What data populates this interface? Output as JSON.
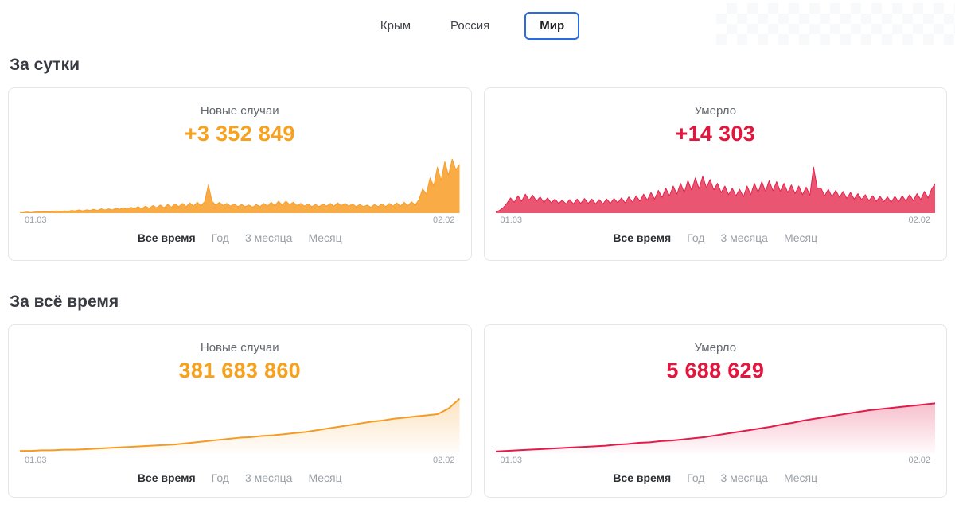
{
  "tabs": [
    {
      "label": "Крым",
      "active": false
    },
    {
      "label": "Россия",
      "active": false
    },
    {
      "label": "Мир",
      "active": true
    }
  ],
  "axis": {
    "start": "01.03",
    "end": "02.02"
  },
  "range_options": [
    "Все время",
    "Год",
    "3 месяца",
    "Месяц"
  ],
  "active_range": "Все время",
  "colors": {
    "accent_orange": "#F7A11C",
    "accent_red": "#E3173D",
    "tab_active_border": "#2B6BE0",
    "card_border": "#e3e6ea",
    "muted_text": "#9aa0a6"
  },
  "sections": [
    {
      "heading": "За сутки",
      "cards": [
        {
          "title": "Новые случаи",
          "value": "+3 352 849"
        },
        {
          "title": "Умерло",
          "value": "+14 303"
        }
      ]
    },
    {
      "heading": "За всё время",
      "cards": [
        {
          "title": "Новые случаи",
          "value": "381 683 860"
        },
        {
          "title": "Умерло",
          "value": "5 688 629"
        }
      ]
    }
  ],
  "chart_data": [
    {
      "id": "daily-new-cases",
      "type": "area",
      "title": "Новые случаи (за сутки)",
      "x_start": "01.03",
      "x_end": "02.02",
      "latest_value_label": "+3 352 849",
      "color": "#F79E2D",
      "fill": "#F9AB45",
      "fill_style": "solid",
      "values_unit": "percent_of_chart_height",
      "values": [
        1,
        1,
        2,
        1,
        2,
        2,
        3,
        2,
        3,
        3,
        4,
        3,
        4,
        3,
        5,
        4,
        6,
        4,
        6,
        5,
        7,
        5,
        8,
        6,
        8,
        6,
        9,
        7,
        10,
        7,
        11,
        8,
        12,
        8,
        13,
        9,
        14,
        10,
        15,
        10,
        16,
        11,
        17,
        12,
        18,
        12,
        19,
        13,
        20,
        14,
        21,
        52,
        22,
        15,
        20,
        14,
        18,
        13,
        17,
        12,
        16,
        12,
        15,
        11,
        16,
        12,
        18,
        13,
        20,
        14,
        22,
        15,
        22,
        16,
        20,
        14,
        18,
        13,
        17,
        12,
        16,
        12,
        17,
        13,
        18,
        13,
        19,
        14,
        18,
        13,
        17,
        12,
        16,
        12,
        15,
        11,
        16,
        12,
        17,
        12,
        18,
        13,
        19,
        13,
        20,
        14,
        21,
        15,
        25,
        45,
        35,
        65,
        50,
        85,
        60,
        95,
        70,
        100,
        80,
        90
      ]
    },
    {
      "id": "daily-deaths",
      "type": "area",
      "title": "Умерло (за сутки)",
      "x_start": "01.03",
      "x_end": "02.02",
      "latest_value_label": "+14 303",
      "color": "#E3234C",
      "fill": "#EA5572",
      "fill_style": "solid",
      "values_unit": "percent_of_chart_height",
      "values": [
        2,
        5,
        10,
        18,
        28,
        20,
        32,
        22,
        35,
        24,
        33,
        22,
        30,
        20,
        28,
        19,
        26,
        18,
        24,
        17,
        25,
        17,
        26,
        18,
        27,
        18,
        26,
        17,
        25,
        17,
        26,
        18,
        27,
        19,
        28,
        19,
        30,
        20,
        32,
        22,
        35,
        24,
        38,
        26,
        42,
        29,
        46,
        32,
        50,
        35,
        55,
        38,
        60,
        42,
        65,
        45,
        68,
        47,
        62,
        43,
        55,
        38,
        50,
        34,
        46,
        32,
        44,
        30,
        50,
        34,
        55,
        38,
        58,
        40,
        60,
        41,
        58,
        40,
        55,
        38,
        52,
        36,
        50,
        34,
        48,
        33,
        85,
        46,
        46,
        32,
        44,
        30,
        42,
        29,
        40,
        27,
        38,
        26,
        36,
        25,
        34,
        23,
        32,
        22,
        31,
        21,
        30,
        20,
        31,
        21,
        32,
        22,
        34,
        23,
        36,
        25,
        40,
        28,
        45,
        55
      ]
    },
    {
      "id": "total-cases",
      "type": "area",
      "title": "Новые случаи (за всё время)",
      "x_start": "01.03",
      "x_end": "02.02",
      "latest_value_label": "381 683 860",
      "color": "#F59B22",
      "fill_style": "fade",
      "values_unit": "percent_of_chart_height",
      "values": [
        4,
        4,
        5,
        5,
        6,
        6,
        7,
        8,
        9,
        10,
        11,
        12,
        13,
        14,
        15,
        17,
        19,
        21,
        23,
        25,
        27,
        28,
        30,
        31,
        33,
        35,
        37,
        40,
        43,
        46,
        49,
        52,
        55,
        57,
        60,
        62,
        64,
        66,
        68,
        78,
        95
      ]
    },
    {
      "id": "total-deaths",
      "type": "area",
      "title": "Умерло (за всё время)",
      "x_start": "01.03",
      "x_end": "02.02",
      "latest_value_label": "5 688 629",
      "color": "#E31B4A",
      "fill_style": "fade",
      "values_unit": "percent_of_chart_height",
      "values": [
        3,
        4,
        5,
        6,
        7,
        8,
        9,
        10,
        11,
        12,
        13,
        15,
        16,
        18,
        19,
        21,
        22,
        24,
        26,
        28,
        31,
        34,
        37,
        40,
        43,
        46,
        50,
        53,
        57,
        60,
        63,
        66,
        69,
        72,
        75,
        77,
        79,
        81,
        83,
        85,
        87
      ]
    }
  ]
}
